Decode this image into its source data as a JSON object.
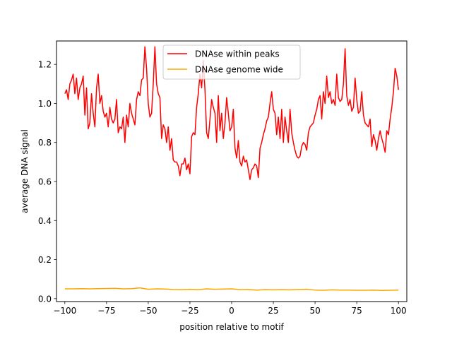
{
  "chart_data": {
    "type": "line",
    "xlabel": "position relative to motif",
    "ylabel": "average DNA signal",
    "xlim": [
      -105,
      105
    ],
    "ylim": [
      -0.015,
      1.32
    ],
    "xticks": [
      -100,
      -75,
      -50,
      -25,
      0,
      25,
      50,
      75,
      100
    ],
    "yticks": [
      0.0,
      0.2,
      0.4,
      0.6,
      0.8,
      1.0,
      1.2
    ],
    "xtick_labels": [
      "−100",
      "−75",
      "−50",
      "−25",
      "0",
      "25",
      "50",
      "75",
      "100"
    ],
    "ytick_labels": [
      "0.0",
      "0.2",
      "0.4",
      "0.6",
      "0.8",
      "1.0",
      "1.2"
    ],
    "grid": false,
    "legend_position": "upper center",
    "series": [
      {
        "name": "DNAse within peaks",
        "color": "#ff0000",
        "x": [
          -100,
          -99,
          -98,
          -97,
          -96,
          -95,
          -94,
          -93,
          -92,
          -91,
          -90,
          -89,
          -88,
          -87,
          -86,
          -85,
          -84,
          -83,
          -82,
          -81,
          -80,
          -79,
          -78,
          -77,
          -76,
          -75,
          -74,
          -73,
          -72,
          -71,
          -70,
          -69,
          -68,
          -67,
          -66,
          -65,
          -64,
          -63,
          -62,
          -61,
          -60,
          -59,
          -58,
          -57,
          -56,
          -55,
          -54,
          -53,
          -52,
          -51,
          -50,
          -49,
          -48,
          -47,
          -46,
          -45,
          -44,
          -43,
          -42,
          -41,
          -40,
          -39,
          -38,
          -37,
          -36,
          -35,
          -34,
          -33,
          -32,
          -31,
          -30,
          -29,
          -28,
          -27,
          -26,
          -25,
          -24,
          -23,
          -22,
          -21,
          -20,
          -19,
          -18,
          -17,
          -16,
          -15,
          -14,
          -13,
          -12,
          -11,
          -10,
          -9,
          -8,
          -7,
          -6,
          -5,
          -4,
          -3,
          -2,
          -1,
          0,
          1,
          2,
          3,
          4,
          5,
          6,
          7,
          8,
          9,
          10,
          11,
          12,
          13,
          14,
          15,
          16,
          17,
          18,
          19,
          20,
          21,
          22,
          23,
          24,
          25,
          26,
          27,
          28,
          29,
          30,
          31,
          32,
          33,
          34,
          35,
          36,
          37,
          38,
          39,
          40,
          41,
          42,
          43,
          44,
          45,
          46,
          47,
          48,
          49,
          50,
          51,
          52,
          53,
          54,
          55,
          56,
          57,
          58,
          59,
          60,
          61,
          62,
          63,
          64,
          65,
          66,
          67,
          68,
          69,
          70,
          71,
          72,
          73,
          74,
          75,
          76,
          77,
          78,
          79,
          80,
          81,
          82,
          83,
          84,
          85,
          86,
          87,
          88,
          89,
          90,
          91,
          92,
          93,
          94,
          95,
          96,
          97,
          98,
          99,
          100
        ],
        "y": [
          1.05,
          1.07,
          1.02,
          1.1,
          1.12,
          1.15,
          1.05,
          1.13,
          1.02,
          1.08,
          1.1,
          1.14,
          0.94,
          1.08,
          0.87,
          0.9,
          1.05,
          0.95,
          0.88,
          1.08,
          1.15,
          1.0,
          1.04,
          0.96,
          0.93,
          0.95,
          0.88,
          0.98,
          0.92,
          0.9,
          0.92,
          1.02,
          0.85,
          0.88,
          0.87,
          0.93,
          0.8,
          0.94,
          0.88,
          1.0,
          0.95,
          0.92,
          0.89,
          1.02,
          1.06,
          1.04,
          1.12,
          1.13,
          1.29,
          1.18,
          1.0,
          0.93,
          0.95,
          1.1,
          1.29,
          1.1,
          1.05,
          1.03,
          0.82,
          0.89,
          0.87,
          0.8,
          0.88,
          0.76,
          0.82,
          0.71,
          0.7,
          0.7,
          0.68,
          0.63,
          0.69,
          0.69,
          0.72,
          0.66,
          0.69,
          0.64,
          0.83,
          0.85,
          0.84,
          0.98,
          1.05,
          1.15,
          1.08,
          1.22,
          1.07,
          0.85,
          0.82,
          0.92,
          1.02,
          0.98,
          0.95,
          0.8,
          1.04,
          0.86,
          0.95,
          0.82,
          0.9,
          1.03,
          0.95,
          0.86,
          0.88,
          0.97,
          0.77,
          0.72,
          0.81,
          0.7,
          0.68,
          0.73,
          0.7,
          0.71,
          0.66,
          0.61,
          0.66,
          0.67,
          0.69,
          0.68,
          0.62,
          0.77,
          0.8,
          0.84,
          0.87,
          0.91,
          0.93,
          1.0,
          1.06,
          0.97,
          0.95,
          0.84,
          0.93,
          0.82,
          0.97,
          0.8,
          0.93,
          0.86,
          0.8,
          0.97,
          0.85,
          0.8,
          0.76,
          0.73,
          0.72,
          0.73,
          0.78,
          0.8,
          0.79,
          0.76,
          0.85,
          0.88,
          0.89,
          0.9,
          0.94,
          0.97,
          1.02,
          1.04,
          0.92,
          1.06,
          1.0,
          1.14,
          1.03,
          1.06,
          1.0,
          1.02,
          0.99,
          1.15,
          1.03,
          1.01,
          1.02,
          1.1,
          1.28,
          1.04,
          0.99,
          1.02,
          0.96,
          0.98,
          1.13,
          1.02,
          0.95,
          0.96,
          1.06,
          0.94,
          0.9,
          0.89,
          0.88,
          0.92,
          0.78,
          0.84,
          0.81,
          0.76,
          0.82,
          0.86,
          0.82,
          0.79,
          0.75,
          0.86,
          0.84,
          0.92,
          0.98,
          1.06,
          1.18,
          1.14,
          1.07
        ]
      },
      {
        "name": "DNAse genome wide",
        "color": "#ffa500",
        "x": [
          -100,
          -95,
          -90,
          -85,
          -80,
          -75,
          -70,
          -65,
          -60,
          -55,
          -50,
          -45,
          -40,
          -35,
          -30,
          -25,
          -20,
          -15,
          -10,
          -5,
          0,
          5,
          10,
          15,
          20,
          25,
          30,
          35,
          40,
          45,
          50,
          55,
          60,
          65,
          70,
          75,
          80,
          85,
          90,
          95,
          100
        ],
        "y": [
          0.05,
          0.05,
          0.051,
          0.05,
          0.051,
          0.052,
          0.053,
          0.05,
          0.051,
          0.055,
          0.048,
          0.05,
          0.049,
          0.047,
          0.046,
          0.048,
          0.046,
          0.05,
          0.048,
          0.049,
          0.05,
          0.046,
          0.047,
          0.044,
          0.046,
          0.045,
          0.046,
          0.045,
          0.047,
          0.048,
          0.044,
          0.043,
          0.045,
          0.044,
          0.044,
          0.043,
          0.043,
          0.044,
          0.042,
          0.043,
          0.044
        ]
      }
    ]
  }
}
